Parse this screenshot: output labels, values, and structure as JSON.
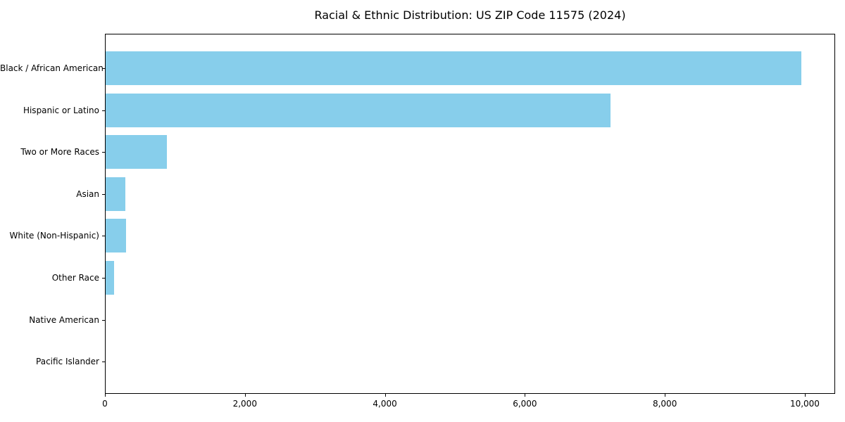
{
  "chart_data": {
    "type": "bar",
    "orientation": "horizontal",
    "title": "Racial & Ethnic Distribution: US ZIP Code 11575 (2024)",
    "categories": [
      "Black / African American",
      "Hispanic or Latino",
      "Two or More Races",
      "Asian",
      "White (Non-Hispanic)",
      "Other Race",
      "Native American",
      "Pacific Islander"
    ],
    "values": [
      9940,
      7210,
      880,
      280,
      290,
      120,
      0,
      0
    ],
    "xlabel": "",
    "ylabel": "",
    "xlim": [
      0,
      10433
    ],
    "x_ticks": [
      0,
      2000,
      4000,
      6000,
      8000,
      10000
    ],
    "x_tick_labels": [
      "0",
      "2,000",
      "4,000",
      "6,000",
      "8,000",
      "10,000"
    ],
    "bar_color": "#87CEEB",
    "frame_color": "#000000",
    "background_color": "#ffffff",
    "grid": false,
    "legend_position": "none"
  }
}
